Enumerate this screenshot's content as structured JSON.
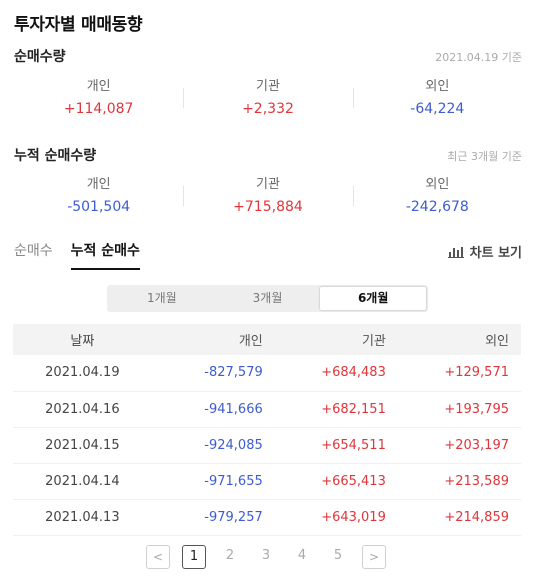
{
  "title": "투자자별 매매동향",
  "net": {
    "title": "순매수량",
    "note": "2021.04.19 기준",
    "items": [
      {
        "label": "개인",
        "value": "+114,087"
      },
      {
        "label": "기관",
        "value": "+2,332"
      },
      {
        "label": "외인",
        "value": "-64,224"
      }
    ]
  },
  "cumulative": {
    "title": "누적 순매수량",
    "note": "최근 3개월 기준",
    "items": [
      {
        "label": "개인",
        "value": "-501,504"
      },
      {
        "label": "기관",
        "value": "+715,884"
      },
      {
        "label": "외인",
        "value": "-242,678"
      }
    ]
  },
  "tabs": [
    "순매수",
    "누적 순매수"
  ],
  "chart_link": "차트 보기",
  "periods": [
    "1개월",
    "3개월",
    "6개월"
  ],
  "table": {
    "headers": [
      "날짜",
      "개인",
      "기관",
      "외인"
    ],
    "rows": [
      [
        "2021.04.19",
        "-827,579",
        "+684,483",
        "+129,571"
      ],
      [
        "2021.04.16",
        "-941,666",
        "+682,151",
        "+193,795"
      ],
      [
        "2021.04.15",
        "-924,085",
        "+654,511",
        "+203,197"
      ],
      [
        "2021.04.14",
        "-971,655",
        "+665,413",
        "+213,589"
      ],
      [
        "2021.04.13",
        "-979,257",
        "+643,019",
        "+214,859"
      ]
    ]
  },
  "pagination": {
    "prev": "<",
    "next": ">",
    "pages": [
      "1",
      "2",
      "3",
      "4",
      "5"
    ]
  },
  "colors": {
    "positive": "#e0363b",
    "negative": "#3e5ccf"
  }
}
